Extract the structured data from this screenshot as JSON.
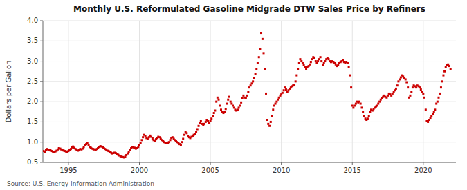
{
  "chart_data": {
    "type": "scatter",
    "title": "Monthly U.S. Reformulated Gasoline Midgrade DTW Sales Price by Refiners",
    "ylabel": "Dollars per Gallon",
    "annotation": "Source: U.S. Energy Information Administration",
    "color": "#cc0000",
    "marker": "square",
    "grid": true,
    "xlim": [
      1993.2,
      2022.3
    ],
    "xticks": [
      1995,
      2000,
      2005,
      2010,
      2015,
      2020
    ],
    "ylim": [
      0.5,
      4.0
    ],
    "yticks": [
      0.5,
      {
        "value": 1.0,
        "label": "1.0"
      },
      1.5,
      {
        "value": 2.0,
        "label": "2.0"
      },
      2.5,
      {
        "value": 3.0,
        "label": "3.0"
      },
      3.5,
      {
        "value": 4.0,
        "label": "4.0"
      }
    ],
    "x": [
      1993.25,
      1993.33,
      1993.42,
      1993.5,
      1993.58,
      1993.67,
      1993.75,
      1993.83,
      1993.92,
      1994.0,
      1994.08,
      1994.17,
      1994.25,
      1994.33,
      1994.42,
      1994.5,
      1994.58,
      1994.67,
      1994.75,
      1994.83,
      1994.92,
      1995.0,
      1995.08,
      1995.17,
      1995.25,
      1995.33,
      1995.42,
      1995.5,
      1995.58,
      1995.67,
      1995.75,
      1995.83,
      1995.92,
      1996.0,
      1996.08,
      1996.17,
      1996.25,
      1996.33,
      1996.42,
      1996.5,
      1996.58,
      1996.67,
      1996.75,
      1996.83,
      1996.92,
      1997.0,
      1997.08,
      1997.17,
      1997.25,
      1997.33,
      1997.42,
      1997.5,
      1997.58,
      1997.67,
      1997.75,
      1997.83,
      1997.92,
      1998.0,
      1998.08,
      1998.17,
      1998.25,
      1998.33,
      1998.42,
      1998.5,
      1998.58,
      1998.67,
      1998.75,
      1998.83,
      1998.92,
      1999.0,
      1999.08,
      1999.17,
      1999.25,
      1999.33,
      1999.42,
      1999.5,
      1999.58,
      1999.67,
      1999.75,
      1999.83,
      1999.92,
      2000.0,
      2000.08,
      2000.17,
      2000.25,
      2000.33,
      2000.42,
      2000.5,
      2000.58,
      2000.67,
      2000.75,
      2000.83,
      2000.92,
      2001.0,
      2001.08,
      2001.17,
      2001.25,
      2001.33,
      2001.42,
      2001.5,
      2001.58,
      2001.67,
      2001.75,
      2001.83,
      2001.92,
      2002.0,
      2002.08,
      2002.17,
      2002.25,
      2002.33,
      2002.42,
      2002.5,
      2002.58,
      2002.67,
      2002.75,
      2002.83,
      2002.92,
      2003.0,
      2003.08,
      2003.17,
      2003.25,
      2003.33,
      2003.42,
      2003.5,
      2003.58,
      2003.67,
      2003.75,
      2003.83,
      2003.92,
      2004.0,
      2004.08,
      2004.17,
      2004.25,
      2004.33,
      2004.42,
      2004.5,
      2004.58,
      2004.67,
      2004.75,
      2004.83,
      2004.92,
      2005.0,
      2005.08,
      2005.17,
      2005.25,
      2005.33,
      2005.42,
      2005.5,
      2005.58,
      2005.67,
      2005.75,
      2005.83,
      2005.92,
      2006.0,
      2006.08,
      2006.17,
      2006.25,
      2006.33,
      2006.42,
      2006.5,
      2006.58,
      2006.67,
      2006.75,
      2006.83,
      2006.92,
      2007.0,
      2007.08,
      2007.17,
      2007.25,
      2007.33,
      2007.42,
      2007.5,
      2007.58,
      2007.67,
      2007.75,
      2007.83,
      2007.92,
      2008.0,
      2008.08,
      2008.17,
      2008.25,
      2008.33,
      2008.42,
      2008.5,
      2008.58,
      2008.67,
      2008.75,
      2008.83,
      2008.92,
      2009.0,
      2009.08,
      2009.17,
      2009.25,
      2009.33,
      2009.42,
      2009.5,
      2009.58,
      2009.67,
      2009.75,
      2009.83,
      2009.92,
      2010.0,
      2010.08,
      2010.17,
      2010.25,
      2010.33,
      2010.42,
      2010.5,
      2010.58,
      2010.67,
      2010.75,
      2010.83,
      2010.92,
      2011.0,
      2011.08,
      2011.17,
      2011.25,
      2011.33,
      2011.42,
      2011.5,
      2011.58,
      2011.67,
      2011.75,
      2011.83,
      2011.92,
      2012.0,
      2012.08,
      2012.17,
      2012.25,
      2012.33,
      2012.42,
      2012.5,
      2012.58,
      2012.67,
      2012.75,
      2012.83,
      2012.92,
      2013.0,
      2013.08,
      2013.17,
      2013.25,
      2013.33,
      2013.42,
      2013.5,
      2013.58,
      2013.67,
      2013.75,
      2013.83,
      2013.92,
      2014.0,
      2014.08,
      2014.17,
      2014.25,
      2014.33,
      2014.42,
      2014.5,
      2014.58,
      2014.67,
      2014.75,
      2014.83,
      2014.92,
      2015.0,
      2015.08,
      2015.17,
      2015.25,
      2015.33,
      2015.42,
      2015.5,
      2015.58,
      2015.67,
      2015.75,
      2015.83,
      2015.92,
      2016.0,
      2016.08,
      2016.17,
      2016.25,
      2016.33,
      2016.42,
      2016.5,
      2016.58,
      2016.67,
      2016.75,
      2016.83,
      2016.92,
      2017.0,
      2017.08,
      2017.17,
      2017.25,
      2017.33,
      2017.42,
      2017.5,
      2017.58,
      2017.67,
      2017.75,
      2017.83,
      2017.92,
      2018.0,
      2018.08,
      2018.17,
      2018.25,
      2018.33,
      2018.42,
      2018.5,
      2018.58,
      2018.67,
      2018.75,
      2018.83,
      2018.92,
      2019.0,
      2019.08,
      2019.17,
      2019.25,
      2019.33,
      2019.42,
      2019.5,
      2019.58,
      2019.67,
      2019.75,
      2019.83,
      2019.92,
      2020.0,
      2020.08,
      2020.17,
      2020.25,
      2020.33,
      2020.42,
      2020.5,
      2020.58,
      2020.67,
      2020.75,
      2020.83,
      2020.92,
      2021.0,
      2021.08,
      2021.17,
      2021.25,
      2021.33,
      2021.42,
      2021.5,
      2021.58,
      2021.67,
      2021.75,
      2021.83,
      2021.92
    ],
    "values": [
      0.78,
      0.76,
      0.8,
      0.83,
      0.81,
      0.8,
      0.79,
      0.78,
      0.76,
      0.75,
      0.77,
      0.79,
      0.82,
      0.85,
      0.84,
      0.82,
      0.8,
      0.79,
      0.78,
      0.77,
      0.76,
      0.78,
      0.8,
      0.83,
      0.87,
      0.89,
      0.86,
      0.83,
      0.8,
      0.79,
      0.81,
      0.83,
      0.82,
      0.84,
      0.88,
      0.92,
      0.95,
      0.97,
      0.93,
      0.88,
      0.86,
      0.84,
      0.83,
      0.82,
      0.81,
      0.83,
      0.85,
      0.88,
      0.9,
      0.89,
      0.87,
      0.85,
      0.83,
      0.8,
      0.79,
      0.78,
      0.76,
      0.74,
      0.72,
      0.73,
      0.74,
      0.73,
      0.71,
      0.69,
      0.67,
      0.65,
      0.64,
      0.63,
      0.62,
      0.64,
      0.68,
      0.72,
      0.76,
      0.8,
      0.85,
      0.88,
      0.87,
      0.86,
      0.84,
      0.85,
      0.88,
      0.92,
      0.97,
      1.05,
      1.12,
      1.18,
      1.15,
      1.1,
      1.08,
      1.12,
      1.16,
      1.13,
      1.09,
      1.05,
      1.03,
      1.07,
      1.1,
      1.13,
      1.12,
      1.08,
      1.05,
      1.03,
      1.0,
      0.98,
      0.97,
      0.98,
      1.0,
      1.05,
      1.1,
      1.12,
      1.08,
      1.05,
      1.03,
      1.0,
      0.98,
      0.95,
      0.93,
      1.0,
      1.08,
      1.18,
      1.25,
      1.22,
      1.15,
      1.12,
      1.1,
      1.13,
      1.15,
      1.18,
      1.2,
      1.25,
      1.32,
      1.4,
      1.48,
      1.52,
      1.45,
      1.42,
      1.45,
      1.5,
      1.55,
      1.52,
      1.48,
      1.52,
      1.58,
      1.65,
      1.72,
      1.78,
      2.0,
      2.1,
      2.05,
      1.9,
      1.8,
      1.75,
      1.72,
      1.75,
      1.82,
      1.95,
      2.05,
      2.12,
      2.0,
      1.95,
      1.9,
      1.85,
      1.8,
      1.78,
      1.8,
      1.85,
      1.9,
      1.98,
      2.08,
      2.15,
      2.1,
      2.08,
      2.15,
      2.25,
      2.35,
      2.4,
      2.45,
      2.5,
      2.58,
      2.68,
      2.8,
      2.95,
      3.1,
      3.3,
      3.7,
      3.55,
      3.2,
      2.8,
      2.2,
      1.55,
      1.45,
      1.4,
      1.5,
      1.65,
      1.8,
      1.9,
      1.95,
      2.0,
      2.05,
      2.1,
      2.15,
      2.18,
      2.22,
      2.28,
      2.35,
      2.3,
      2.25,
      2.28,
      2.32,
      2.35,
      2.38,
      2.4,
      2.42,
      2.5,
      2.65,
      2.8,
      2.95,
      3.05,
      3.0,
      2.95,
      2.9,
      2.85,
      2.8,
      2.85,
      2.88,
      2.92,
      2.98,
      3.05,
      3.1,
      3.08,
      3.0,
      2.95,
      3.0,
      3.05,
      3.1,
      3.0,
      2.9,
      2.95,
      3.0,
      3.05,
      3.08,
      3.05,
      3.0,
      2.98,
      3.0,
      2.98,
      2.95,
      2.92,
      2.88,
      2.9,
      2.95,
      2.98,
      3.0,
      3.02,
      2.98,
      2.95,
      2.98,
      2.95,
      2.85,
      2.65,
      2.35,
      1.9,
      1.85,
      1.9,
      1.95,
      2.0,
      1.98,
      2.0,
      1.95,
      1.85,
      1.75,
      1.65,
      1.58,
      1.55,
      1.58,
      1.65,
      1.75,
      1.8,
      1.78,
      1.82,
      1.85,
      1.88,
      1.9,
      1.95,
      2.0,
      2.05,
      2.08,
      2.12,
      2.15,
      2.12,
      2.1,
      2.15,
      2.2,
      2.18,
      2.15,
      2.2,
      2.25,
      2.28,
      2.32,
      2.4,
      2.5,
      2.55,
      2.6,
      2.65,
      2.62,
      2.58,
      2.55,
      2.48,
      2.35,
      2.1,
      2.15,
      2.25,
      2.35,
      2.4,
      2.38,
      2.35,
      2.4,
      2.38,
      2.35,
      2.3,
      2.25,
      2.2,
      2.1,
      1.8,
      1.52,
      1.5,
      1.55,
      1.6,
      1.65,
      1.7,
      1.75,
      1.8,
      1.95,
      2.0,
      2.1,
      2.2,
      2.35,
      2.5,
      2.65,
      2.75,
      2.85,
      2.9,
      2.92,
      2.88,
      2.8
    ]
  }
}
